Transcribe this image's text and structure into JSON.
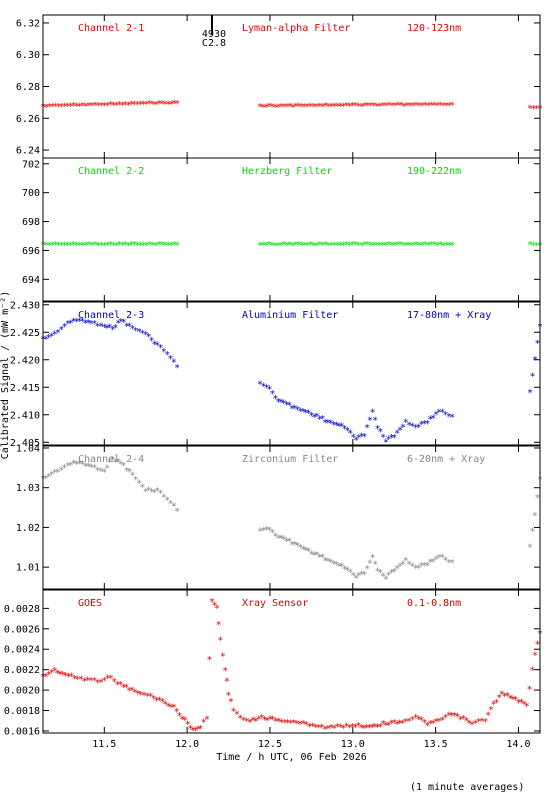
{
  "xaxis": {
    "label": "Time / h UTC, 06 Feb 2026",
    "range": [
      11.13,
      14.13
    ],
    "ticks": [
      "11.5",
      "12.0",
      "12.5",
      "13.0",
      "13.5",
      "14.0"
    ],
    "tick_values": [
      11.5,
      12.0,
      12.5,
      13.0,
      13.5,
      14.0
    ]
  },
  "ylabel": "Calibrated Signal / (mW m⁻²)",
  "footnote": "(1 minute averages)",
  "marker": {
    "x": 12.15,
    "labels": [
      "4930",
      "C2.8"
    ]
  },
  "chart_data": [
    {
      "type": "scatter",
      "channel": "Channel 2-1",
      "filter": "Lyman-alpha Filter",
      "band": "120-123nm",
      "color": "#ee0000",
      "ylim": [
        6.235,
        6.325
      ],
      "yticks": [
        "6.24",
        "6.26",
        "6.28",
        "6.30",
        "6.32"
      ],
      "ytick_values": [
        6.24,
        6.26,
        6.28,
        6.3,
        6.32
      ],
      "segments": [
        {
          "x": [
            11.13,
            11.5,
            11.94
          ],
          "y": [
            6.267,
            6.268,
            6.269
          ]
        },
        {
          "x": [
            12.44,
            13.0,
            13.6
          ],
          "y": [
            6.267,
            6.2675,
            6.268
          ]
        },
        {
          "x": [
            14.07,
            14.13
          ],
          "y": [
            6.266,
            6.266
          ]
        }
      ]
    },
    {
      "type": "scatter",
      "channel": "Channel 2-2",
      "filter": "Herzberg Filter",
      "band": "190-222nm",
      "color": "#00dd00",
      "ylim": [
        692.5,
        702.4
      ],
      "yticks": [
        "694",
        "696",
        "698",
        "700",
        "702"
      ],
      "ytick_values": [
        694,
        696,
        698,
        700,
        702
      ],
      "segments": [
        {
          "x": [
            11.13,
            11.5,
            11.94
          ],
          "y": [
            696.35,
            696.35,
            696.35
          ]
        },
        {
          "x": [
            12.44,
            13.0,
            13.6
          ],
          "y": [
            696.35,
            696.35,
            696.35
          ]
        },
        {
          "x": [
            14.07,
            14.13
          ],
          "y": [
            696.35,
            696.35
          ]
        }
      ]
    },
    {
      "type": "scatter",
      "channel": "Channel 2-3",
      "filter": "Aluminium Filter",
      "band": "17-80nm + Xray",
      "color": "#0000cc",
      "ylim": [
        2.4045,
        2.4305
      ],
      "yticks": [
        "2.405",
        "2.410",
        "2.415",
        "2.420",
        "2.425",
        "2.430"
      ],
      "ytick_values": [
        2.405,
        2.41,
        2.415,
        2.42,
        2.425,
        2.43
      ],
      "segments": [
        {
          "x": [
            11.13,
            11.2,
            11.28,
            11.35,
            11.42,
            11.5,
            11.55,
            11.6,
            11.67,
            11.75,
            11.82,
            11.88,
            11.94
          ],
          "y": [
            2.4235,
            2.4245,
            2.4265,
            2.427,
            2.4265,
            2.426,
            2.4255,
            2.427,
            2.4255,
            2.4245,
            2.4225,
            2.421,
            2.4185
          ]
        },
        {
          "x": [
            12.44,
            12.48,
            12.55,
            12.65,
            12.75,
            12.85,
            12.95,
            13.02,
            13.07,
            13.12,
            13.15,
            13.2,
            13.25,
            13.32,
            13.38,
            13.45,
            13.52,
            13.6
          ],
          "y": [
            2.4155,
            2.415,
            2.4125,
            2.411,
            2.41,
            2.4085,
            2.4075,
            2.4055,
            2.406,
            2.4105,
            2.4075,
            2.405,
            2.406,
            2.4085,
            2.4075,
            2.4085,
            2.4105,
            2.4095
          ]
        },
        {
          "x": [
            14.07,
            14.1,
            14.13
          ],
          "y": [
            2.414,
            2.42,
            2.426
          ]
        }
      ]
    },
    {
      "type": "scatter",
      "channel": "Channel 2-4",
      "filter": "Zirconium Filter",
      "band": "6-20nm + Xray",
      "color": "#888888",
      "ylim": [
        1.0045,
        1.0405
      ],
      "yticks": [
        "1.01",
        "1.02",
        "1.03",
        "1.04"
      ],
      "ytick_values": [
        1.01,
        1.02,
        1.03,
        1.04
      ],
      "segments": [
        {
          "x": [
            11.13,
            11.2,
            11.28,
            11.35,
            11.42,
            11.5,
            11.55,
            11.6,
            11.67,
            11.75,
            11.82,
            11.88,
            11.94
          ],
          "y": [
            1.032,
            1.0335,
            1.0355,
            1.036,
            1.035,
            1.034,
            1.037,
            1.036,
            1.033,
            1.029,
            1.029,
            1.027,
            1.024
          ]
        },
        {
          "x": [
            12.44,
            12.48,
            12.55,
            12.65,
            12.75,
            12.85,
            12.95,
            13.02,
            13.07,
            13.12,
            13.15,
            13.2,
            13.25,
            13.32,
            13.38,
            13.45,
            13.52,
            13.6
          ],
          "y": [
            1.019,
            1.0195,
            1.0175,
            1.0155,
            1.0135,
            1.0115,
            1.0095,
            1.0075,
            1.008,
            1.0125,
            1.009,
            1.007,
            1.009,
            1.0115,
            1.0095,
            1.0105,
            1.0125,
            1.011
          ]
        },
        {
          "x": [
            14.07,
            14.1,
            14.13
          ],
          "y": [
            1.015,
            1.023,
            1.032
          ]
        }
      ]
    },
    {
      "type": "scatter",
      "channel": "GOES",
      "filter": "Xray Sensor",
      "band": "0.1-0.8nm",
      "color": "#dd0000",
      "ylim": [
        0.00158,
        0.00298
      ],
      "yticks": [
        "0.0016",
        "0.0018",
        "0.0020",
        "0.0022",
        "0.0024",
        "0.0026",
        "0.0028"
      ],
      "ytick_values": [
        0.0016,
        0.0018,
        0.002,
        0.0022,
        0.0024,
        0.0026,
        0.0028
      ],
      "segments": [
        {
          "x": [
            11.13,
            11.2,
            11.25,
            11.32,
            11.4,
            11.48,
            11.52,
            11.58,
            11.65,
            11.72,
            11.78,
            11.85,
            11.92,
            11.97,
            12.02,
            12.05,
            12.08,
            12.12,
            12.15,
            12.18,
            12.2,
            12.23,
            12.25,
            12.28,
            12.32,
            12.38,
            12.45,
            12.55,
            12.7,
            12.85,
            13.0,
            13.1,
            13.2,
            13.3,
            13.38,
            13.45,
            13.52,
            13.58,
            13.65,
            13.72,
            13.8,
            13.85,
            13.9,
            13.95,
            14.0,
            14.05,
            14.1,
            14.13
          ],
          "y": [
            0.00212,
            0.00218,
            0.00215,
            0.00211,
            0.00209,
            0.00208,
            0.00212,
            0.00206,
            0.002,
            0.00195,
            0.00193,
            0.00188,
            0.00182,
            0.00172,
            0.00163,
            0.0016,
            0.00162,
            0.00172,
            0.00286,
            0.0028,
            0.00248,
            0.0022,
            0.00195,
            0.0018,
            0.00172,
            0.00168,
            0.00172,
            0.00169,
            0.00166,
            0.00162,
            0.00164,
            0.00163,
            0.00166,
            0.00168,
            0.00172,
            0.00166,
            0.00168,
            0.00175,
            0.00172,
            0.00166,
            0.0017,
            0.00185,
            0.00195,
            0.00192,
            0.00188,
            0.00185,
            0.00235,
            0.00255
          ]
        }
      ]
    }
  ]
}
